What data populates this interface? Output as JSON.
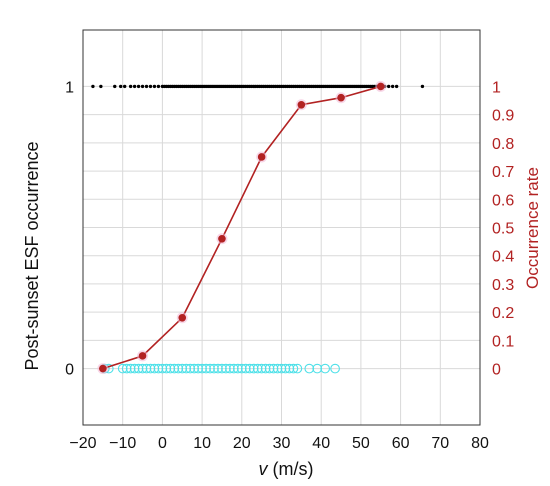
{
  "chart_data": {
    "type": "scatter",
    "x_axis": {
      "label_italic": "v",
      "label_rest": " (m/s)",
      "range": [
        -20,
        80
      ],
      "ticks": [
        -20,
        -10,
        0,
        10,
        20,
        30,
        40,
        50,
        60,
        70,
        80
      ],
      "tick_labels": [
        "−20",
        "−10",
        "0",
        "10",
        "20",
        "30",
        "40",
        "50",
        "60",
        "70",
        "80"
      ]
    },
    "y_left": {
      "label": "Post-sunset ESF occurrence",
      "range": [
        -0.2,
        1.2
      ],
      "ticks": [
        0,
        1
      ],
      "tick_labels": [
        "0",
        "1"
      ]
    },
    "y_right": {
      "label": "Occurrence rate",
      "range": [
        -0.2,
        1.2
      ],
      "ticks": [
        0,
        0.1,
        0.2,
        0.3,
        0.4,
        0.5,
        0.6,
        0.7,
        0.8,
        0.9,
        1
      ],
      "tick_labels": [
        "0",
        "0.1",
        "0.2",
        "0.3",
        "0.4",
        "0.5",
        "0.6",
        "0.7",
        "0.8",
        "0.9",
        "1"
      ]
    },
    "grid": true,
    "series": [
      {
        "kind": "esf_yes",
        "color": "#000000",
        "y": 1,
        "x": [
          -17.5,
          -15.5,
          -12,
          -10.5,
          -9.5,
          -8,
          -7,
          -6,
          -5,
          -4,
          -3,
          -2,
          -1,
          0,
          0.5,
          1,
          1.5,
          2,
          2.5,
          3,
          3.5,
          4,
          4.5,
          5,
          5.5,
          6,
          6.5,
          7,
          7.5,
          8,
          8.5,
          9,
          9.5,
          10,
          10.5,
          11,
          11.5,
          12,
          12.5,
          13,
          13.5,
          14,
          14.5,
          15,
          15.5,
          16,
          16.5,
          17,
          17.5,
          18,
          18.5,
          19,
          19.5,
          20,
          20.5,
          21,
          21.5,
          22,
          22.5,
          23,
          23.5,
          24,
          24.5,
          25,
          25.5,
          26,
          26.5,
          27,
          27.5,
          28,
          28.5,
          29,
          29.5,
          30,
          30.5,
          31,
          31.5,
          32,
          32.5,
          33,
          33.5,
          34,
          34.5,
          35,
          35.5,
          36,
          36.5,
          37,
          37.5,
          38,
          38.5,
          39,
          39.5,
          40,
          40.5,
          41,
          41.5,
          42,
          42.5,
          43,
          43.5,
          44,
          44.5,
          45,
          45.5,
          46,
          46.5,
          47,
          47.5,
          48,
          48.5,
          49,
          49.5,
          50,
          50.5,
          51,
          51.5,
          52,
          52.5,
          53,
          53.5,
          54,
          54.5,
          55,
          55.5,
          56,
          57,
          58,
          59,
          65.5
        ]
      },
      {
        "kind": "esf_no",
        "color": "#4de0e8",
        "y": 0,
        "x": [
          -14.5,
          -13.5,
          -10,
          -9,
          -8,
          -7,
          -6,
          -5,
          -4,
          -3,
          -2,
          -1,
          0,
          1,
          2,
          3,
          4,
          5,
          6,
          7,
          8,
          9,
          10,
          11,
          12,
          13,
          14,
          15,
          16,
          17,
          18,
          19,
          20,
          21,
          22,
          23,
          24,
          25,
          26,
          27,
          28,
          29,
          30,
          31,
          32,
          33,
          34,
          37,
          39,
          41,
          43.5
        ]
      },
      {
        "kind": "rate",
        "name": "Occurrence rate",
        "color": "#b22222",
        "x": [
          -15,
          -5,
          5,
          15,
          25,
          35,
          45,
          55
        ],
        "y": [
          0.0,
          0.045,
          0.18,
          0.46,
          0.75,
          0.935,
          0.96,
          1.0
        ]
      }
    ]
  }
}
